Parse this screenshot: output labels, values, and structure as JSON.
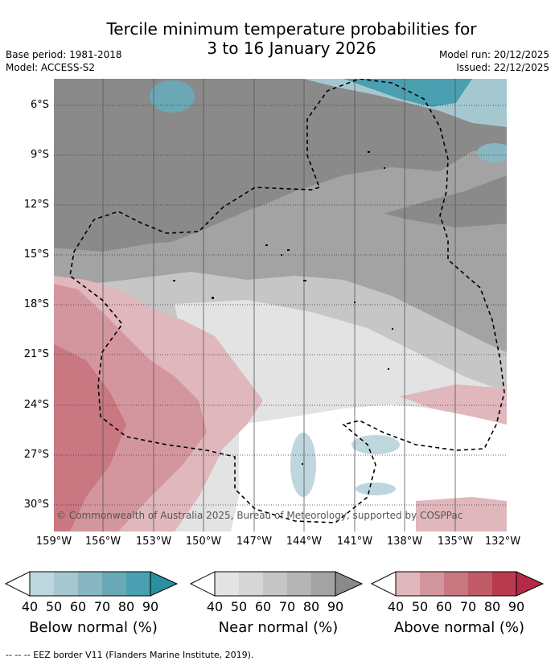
{
  "title_line1": "Tercile minimum temperature probabilities for",
  "title_line2": "3 to 16 January 2026",
  "base_period": "Base period: 1981-2018",
  "model": "Model: ACCESS-S2",
  "model_run": "Model run: 20/12/2025",
  "issued": "Issued: 22/12/2025",
  "lat_labels": [
    "6°S",
    "9°S",
    "12°S",
    "15°S",
    "18°S",
    "21°S",
    "24°S",
    "27°S",
    "30°S"
  ],
  "lon_labels": [
    "159°W",
    "156°W",
    "153°W",
    "150°W",
    "147°W",
    "144°W",
    "141°W",
    "138°W",
    "135°W",
    "132°W"
  ],
  "copyright": "© Commonwealth of Australia 2025, Bureau of Meteorology, supported by COSPPac",
  "footer": "-- -- -- EEZ border V11 (Flanders Marine Institute, 2019).",
  "legends": [
    {
      "label": "Below normal (%)",
      "ticks": [
        "40",
        "50",
        "60",
        "70",
        "80",
        "90"
      ],
      "colors": [
        "#bed6de",
        "#a5c8d0",
        "#88b7c2",
        "#6aa8b5",
        "#4a9fb0",
        "#2a8f9f"
      ]
    },
    {
      "label": "Near normal (%)",
      "ticks": [
        "40",
        "50",
        "60",
        "70",
        "80",
        "90"
      ],
      "colors": [
        "#e3e3e3",
        "#d6d6d6",
        "#c6c6c6",
        "#b5b5b5",
        "#a3a3a3",
        "#8a8a8a"
      ]
    },
    {
      "label": "Above normal (%)",
      "ticks": [
        "40",
        "50",
        "60",
        "70",
        "80",
        "90"
      ],
      "colors": [
        "#e0b7bc",
        "#d4969e",
        "#c97781",
        "#c15b67",
        "#b73a4e",
        "#b52a48"
      ]
    }
  ]
}
